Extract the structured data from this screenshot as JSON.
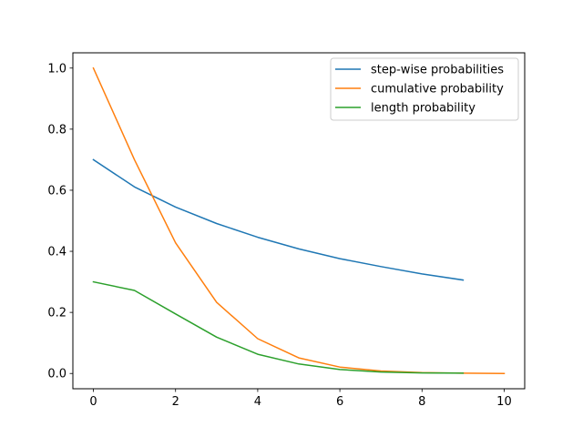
{
  "chart_data": {
    "type": "line",
    "title": "",
    "xlabel": "",
    "ylabel": "",
    "xlim": [
      -0.5,
      10.5
    ],
    "ylim": [
      -0.05,
      1.05
    ],
    "xticks": [
      0,
      2,
      4,
      6,
      8,
      10
    ],
    "xtick_labels": [
      "0",
      "2",
      "4",
      "6",
      "8",
      "10"
    ],
    "yticks": [
      0.0,
      0.2,
      0.4,
      0.6,
      0.8,
      1.0
    ],
    "ytick_labels": [
      "0.0",
      "0.2",
      "0.4",
      "0.6",
      "0.8",
      "1.0"
    ],
    "grid": false,
    "legend_position": "top-right",
    "series": [
      {
        "name": "step-wise probabilities",
        "color": "#1f77b4",
        "x": [
          0,
          1,
          2,
          3,
          4,
          5,
          6,
          7,
          8,
          9
        ],
        "y": [
          0.7,
          0.611,
          0.545,
          0.491,
          0.446,
          0.408,
          0.376,
          0.35,
          0.326,
          0.306
        ]
      },
      {
        "name": "cumulative probability",
        "color": "#ff7f0e",
        "x": [
          0,
          1,
          2,
          3,
          4,
          5,
          6,
          7,
          8,
          9,
          10
        ],
        "y": [
          1.0,
          0.7,
          0.428,
          0.233,
          0.114,
          0.051,
          0.021,
          0.008,
          0.003,
          0.001,
          0.0
        ]
      },
      {
        "name": "length probability",
        "color": "#2ca02c",
        "x": [
          0,
          1,
          2,
          3,
          4,
          5,
          6,
          7,
          8,
          9
        ],
        "y": [
          0.3,
          0.272,
          0.195,
          0.119,
          0.063,
          0.031,
          0.013,
          0.005,
          0.002,
          0.001
        ]
      }
    ]
  }
}
